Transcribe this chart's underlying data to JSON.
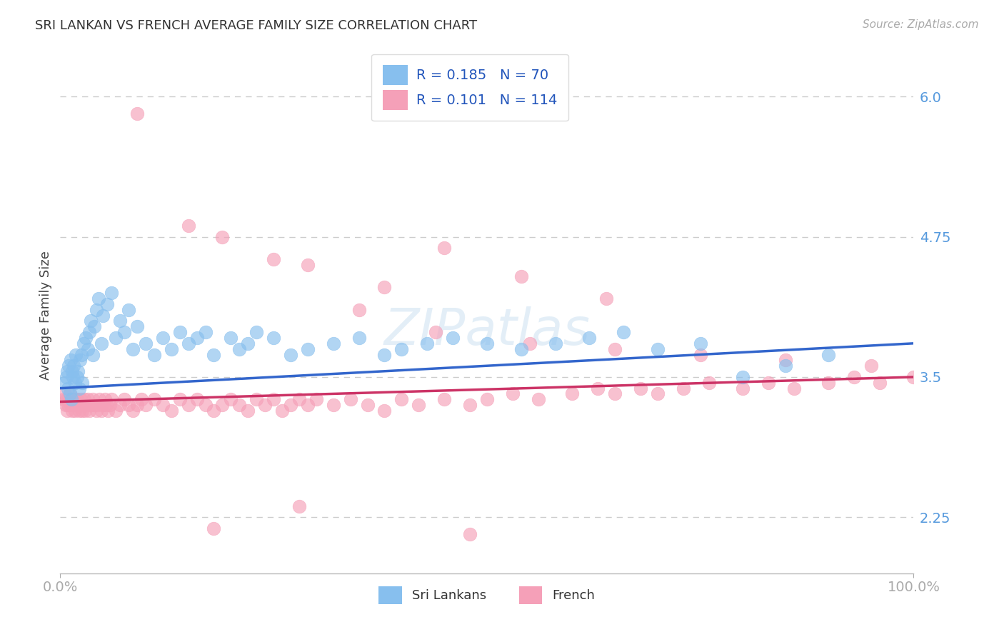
{
  "title": "SRI LANKAN VS FRENCH AVERAGE FAMILY SIZE CORRELATION CHART",
  "source": "Source: ZipAtlas.com",
  "ylabel": "Average Family Size",
  "xlim": [
    0.0,
    1.0
  ],
  "ylim": [
    1.75,
    6.35
  ],
  "yticks": [
    2.25,
    3.5,
    4.75,
    6.0
  ],
  "xtick_labels": [
    "0.0%",
    "100.0%"
  ],
  "sri_color": "#87BFEE",
  "french_color": "#F5A0B8",
  "trend_sri_color": "#3366CC",
  "trend_french_color": "#CC3366",
  "background_color": "#ffffff",
  "grid_color": "#cccccc",
  "title_color": "#333333",
  "tick_color": "#5599dd",
  "watermark": "ZIPatlas",
  "label_sri": "Sri Lankans",
  "label_french": "French",
  "legend_line1": "R = 0.185   N = 70",
  "legend_line2": "R = 0.101   N = 114",
  "sri_x": [
    0.005,
    0.007,
    0.008,
    0.009,
    0.01,
    0.011,
    0.012,
    0.013,
    0.014,
    0.015,
    0.016,
    0.017,
    0.018,
    0.02,
    0.021,
    0.022,
    0.023,
    0.025,
    0.026,
    0.027,
    0.03,
    0.032,
    0.034,
    0.036,
    0.038,
    0.04,
    0.042,
    0.045,
    0.048,
    0.05,
    0.055,
    0.06,
    0.065,
    0.07,
    0.075,
    0.08,
    0.085,
    0.09,
    0.1,
    0.11,
    0.12,
    0.13,
    0.14,
    0.15,
    0.16,
    0.17,
    0.18,
    0.2,
    0.21,
    0.22,
    0.23,
    0.25,
    0.27,
    0.29,
    0.32,
    0.35,
    0.38,
    0.4,
    0.43,
    0.46,
    0.5,
    0.54,
    0.58,
    0.62,
    0.66,
    0.7,
    0.75,
    0.8,
    0.85,
    0.9
  ],
  "sri_y": [
    3.45,
    3.5,
    3.55,
    3.4,
    3.6,
    3.35,
    3.65,
    3.3,
    3.55,
    3.5,
    3.6,
    3.45,
    3.7,
    3.5,
    3.55,
    3.4,
    3.65,
    3.7,
    3.45,
    3.8,
    3.85,
    3.75,
    3.9,
    4.0,
    3.7,
    3.95,
    4.1,
    4.2,
    3.8,
    4.05,
    4.15,
    4.25,
    3.85,
    4.0,
    3.9,
    4.1,
    3.75,
    3.95,
    3.8,
    3.7,
    3.85,
    3.75,
    3.9,
    3.8,
    3.85,
    3.9,
    3.7,
    3.85,
    3.75,
    3.8,
    3.9,
    3.85,
    3.7,
    3.75,
    3.8,
    3.85,
    3.7,
    3.75,
    3.8,
    3.85,
    3.8,
    3.75,
    3.8,
    3.85,
    3.9,
    3.75,
    3.8,
    3.5,
    3.6,
    3.7
  ],
  "french_x": [
    0.004,
    0.005,
    0.006,
    0.007,
    0.008,
    0.009,
    0.01,
    0.011,
    0.012,
    0.013,
    0.014,
    0.015,
    0.016,
    0.017,
    0.018,
    0.019,
    0.02,
    0.021,
    0.022,
    0.023,
    0.024,
    0.025,
    0.026,
    0.027,
    0.028,
    0.029,
    0.03,
    0.032,
    0.034,
    0.036,
    0.038,
    0.04,
    0.042,
    0.044,
    0.046,
    0.048,
    0.05,
    0.052,
    0.054,
    0.056,
    0.058,
    0.06,
    0.065,
    0.07,
    0.075,
    0.08,
    0.085,
    0.09,
    0.095,
    0.1,
    0.11,
    0.12,
    0.13,
    0.14,
    0.15,
    0.16,
    0.17,
    0.18,
    0.19,
    0.2,
    0.21,
    0.22,
    0.23,
    0.24,
    0.25,
    0.26,
    0.27,
    0.28,
    0.29,
    0.3,
    0.32,
    0.34,
    0.36,
    0.38,
    0.4,
    0.42,
    0.45,
    0.48,
    0.5,
    0.53,
    0.56,
    0.6,
    0.63,
    0.65,
    0.68,
    0.7,
    0.73,
    0.76,
    0.8,
    0.83,
    0.86,
    0.9,
    0.93,
    0.96,
    1.0,
    0.09,
    0.19,
    0.29,
    0.38,
    0.45,
    0.54,
    0.64,
    0.15,
    0.25,
    0.35,
    0.44,
    0.55,
    0.65,
    0.75,
    0.85,
    0.95,
    0.18,
    0.28,
    0.48
  ],
  "french_y": [
    3.3,
    3.35,
    3.25,
    3.3,
    3.2,
    3.25,
    3.3,
    3.35,
    3.25,
    3.3,
    3.2,
    3.25,
    3.3,
    3.2,
    3.3,
    3.25,
    3.3,
    3.25,
    3.2,
    3.25,
    3.3,
    3.25,
    3.2,
    3.25,
    3.3,
    3.2,
    3.25,
    3.3,
    3.2,
    3.25,
    3.3,
    3.25,
    3.2,
    3.25,
    3.3,
    3.2,
    3.25,
    3.3,
    3.25,
    3.2,
    3.25,
    3.3,
    3.2,
    3.25,
    3.3,
    3.25,
    3.2,
    3.25,
    3.3,
    3.25,
    3.3,
    3.25,
    3.2,
    3.3,
    3.25,
    3.3,
    3.25,
    3.2,
    3.25,
    3.3,
    3.25,
    3.2,
    3.3,
    3.25,
    3.3,
    3.2,
    3.25,
    3.3,
    3.25,
    3.3,
    3.25,
    3.3,
    3.25,
    3.2,
    3.3,
    3.25,
    3.3,
    3.25,
    3.3,
    3.35,
    3.3,
    3.35,
    3.4,
    3.35,
    3.4,
    3.35,
    3.4,
    3.45,
    3.4,
    3.45,
    3.4,
    3.45,
    3.5,
    3.45,
    3.5,
    5.85,
    4.75,
    4.5,
    4.3,
    4.65,
    4.4,
    4.2,
    4.85,
    4.55,
    4.1,
    3.9,
    3.8,
    3.75,
    3.7,
    3.65,
    3.6,
    2.15,
    2.35,
    2.1
  ]
}
